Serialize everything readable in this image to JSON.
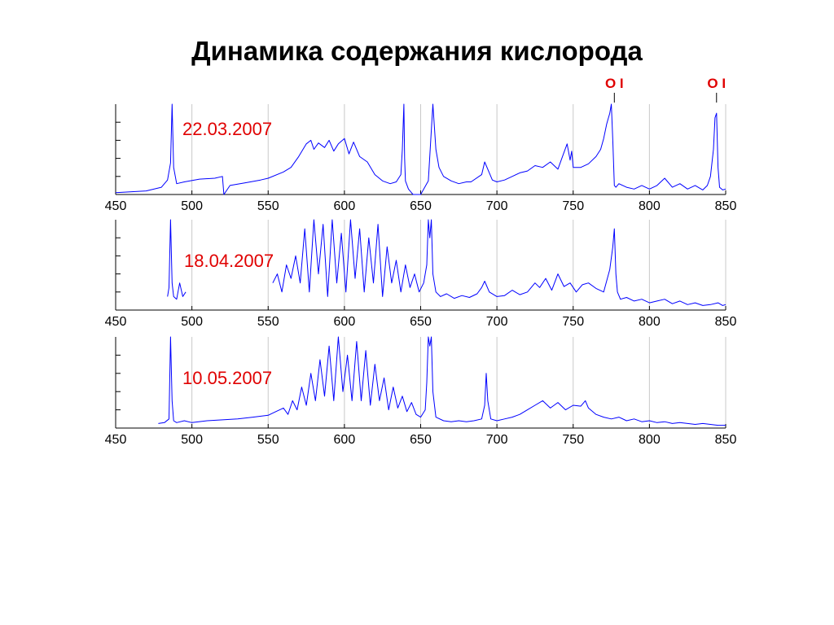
{
  "slide": {
    "title": "Динамика содержания кислорода"
  },
  "colors": {
    "series": "#0000ff",
    "date_label": "#e00000",
    "line_label": "#e00000",
    "grid": "#c8c8c8",
    "axis": "#000000"
  },
  "chart_data": [
    {
      "type": "line",
      "date_label": "22.03.2007",
      "xlim": [
        450,
        850
      ],
      "xticks": [
        450,
        500,
        550,
        600,
        650,
        700,
        750,
        800,
        850
      ],
      "ylim": [
        0,
        1
      ],
      "grid": "vertical",
      "annotations": [
        {
          "label": "O I",
          "x": 777
        },
        {
          "label": "O I",
          "x": 844
        }
      ],
      "series": [
        {
          "x": [
            450,
            470,
            480,
            484,
            486,
            487,
            488,
            490,
            495,
            505,
            515,
            520,
            521,
            525,
            535,
            545,
            550,
            560,
            565,
            570,
            575,
            578,
            580,
            583,
            587,
            590,
            593,
            596,
            600,
            603,
            606,
            610,
            615,
            620,
            625,
            630,
            634,
            637,
            638,
            639,
            639.5,
            640,
            642,
            644,
            645,
            650,
            655,
            658,
            660,
            662,
            665,
            670,
            675,
            680,
            683,
            690,
            692,
            695,
            697,
            700,
            705,
            710,
            715,
            720,
            725,
            730,
            735,
            740,
            743,
            746,
            748,
            749,
            750,
            755,
            760,
            765,
            768,
            770,
            772,
            774,
            775,
            776,
            777,
            778,
            780,
            785,
            790,
            795,
            800,
            805,
            810,
            815,
            820,
            825,
            830,
            835,
            838,
            840,
            842,
            843,
            844,
            845,
            846,
            848,
            850
          ],
          "y": [
            0.02,
            0.04,
            0.08,
            0.16,
            0.35,
            1.0,
            0.3,
            0.12,
            0.14,
            0.17,
            0.18,
            0.2,
            0.0,
            0.1,
            0.13,
            0.16,
            0.18,
            0.25,
            0.3,
            0.42,
            0.56,
            0.6,
            0.5,
            0.57,
            0.52,
            0.6,
            0.48,
            0.56,
            0.62,
            0.45,
            0.58,
            0.42,
            0.36,
            0.22,
            0.15,
            0.12,
            0.14,
            0.22,
            0.5,
            1.0,
            0.4,
            0.15,
            0.06,
            0.02,
            0.0,
            0.0,
            0.15,
            1.0,
            0.5,
            0.3,
            0.2,
            0.15,
            0.12,
            0.14,
            0.14,
            0.22,
            0.36,
            0.24,
            0.16,
            0.14,
            0.16,
            0.2,
            0.24,
            0.26,
            0.32,
            0.3,
            0.36,
            0.28,
            0.42,
            0.56,
            0.38,
            0.48,
            0.3,
            0.3,
            0.34,
            0.42,
            0.5,
            0.62,
            0.78,
            0.9,
            1.0,
            0.6,
            0.1,
            0.08,
            0.12,
            0.08,
            0.06,
            0.1,
            0.06,
            0.1,
            0.18,
            0.08,
            0.12,
            0.06,
            0.1,
            0.05,
            0.1,
            0.2,
            0.5,
            0.85,
            0.9,
            0.3,
            0.08,
            0.05,
            0.06
          ]
        }
      ]
    },
    {
      "type": "line",
      "date_label": "18.04.2007",
      "xlim": [
        450,
        850
      ],
      "xticks": [
        450,
        500,
        550,
        600,
        650,
        700,
        750,
        800,
        850
      ],
      "ylim": [
        0,
        1
      ],
      "grid": "vertical",
      "annotations": [],
      "series": [
        {
          "x": [
            484,
            485,
            486,
            487,
            488,
            490,
            492,
            494,
            496
          ],
          "y": [
            0.15,
            0.25,
            1.0,
            0.3,
            0.15,
            0.12,
            0.3,
            0.15,
            0.2
          ]
        },
        {
          "x": [
            553,
            556,
            559,
            562,
            565,
            568,
            571,
            574,
            577,
            580,
            583,
            586,
            589,
            592,
            595,
            598,
            601,
            604,
            607,
            610,
            613,
            616,
            619,
            622,
            625,
            628,
            631,
            634,
            637,
            640,
            643,
            646,
            649,
            652,
            654,
            655,
            656,
            657,
            658,
            660,
            663,
            667,
            672,
            677,
            682,
            687,
            690,
            692,
            695,
            700,
            705,
            710,
            715,
            720,
            725,
            728,
            732,
            736,
            740,
            744,
            748,
            752,
            756,
            760,
            765,
            770,
            774,
            776,
            777,
            778,
            779,
            781,
            785,
            790,
            795,
            800,
            805,
            810,
            815,
            820,
            825,
            830,
            835,
            840,
            845,
            848,
            850
          ],
          "y": [
            0.3,
            0.4,
            0.2,
            0.5,
            0.35,
            0.6,
            0.3,
            0.9,
            0.2,
            1.0,
            0.4,
            0.95,
            0.15,
            1.0,
            0.3,
            0.85,
            0.2,
            1.0,
            0.35,
            0.9,
            0.2,
            0.8,
            0.3,
            0.95,
            0.15,
            0.7,
            0.3,
            0.55,
            0.2,
            0.5,
            0.25,
            0.4,
            0.2,
            0.3,
            0.5,
            1.0,
            0.8,
            1.0,
            0.4,
            0.2,
            0.15,
            0.18,
            0.13,
            0.16,
            0.14,
            0.18,
            0.25,
            0.32,
            0.2,
            0.15,
            0.16,
            0.22,
            0.17,
            0.2,
            0.3,
            0.25,
            0.35,
            0.22,
            0.4,
            0.26,
            0.3,
            0.2,
            0.28,
            0.3,
            0.24,
            0.2,
            0.45,
            0.7,
            0.9,
            0.4,
            0.2,
            0.12,
            0.14,
            0.1,
            0.12,
            0.08,
            0.1,
            0.12,
            0.07,
            0.1,
            0.06,
            0.08,
            0.05,
            0.06,
            0.08,
            0.05,
            0.06
          ]
        }
      ]
    },
    {
      "type": "line",
      "date_label": "10.05.2007",
      "xlim": [
        450,
        850
      ],
      "xticks": [
        450,
        500,
        550,
        600,
        650,
        700,
        750,
        800,
        850
      ],
      "ylim": [
        0,
        1
      ],
      "grid": "vertical",
      "annotations": [],
      "series": [
        {
          "x": [
            478,
            482,
            485,
            486,
            487,
            488,
            490,
            495,
            500,
            510,
            520,
            530,
            540,
            550,
            555,
            560,
            563,
            566,
            569,
            572,
            575,
            578,
            581,
            584,
            587,
            590,
            593,
            596,
            599,
            602,
            605,
            608,
            611,
            614,
            617,
            620,
            623,
            626,
            629,
            632,
            635,
            638,
            641,
            644,
            647,
            650,
            653,
            654,
            655,
            656,
            657,
            658,
            660,
            665,
            670,
            675,
            680,
            685,
            690,
            692,
            693,
            694,
            696,
            700,
            705,
            710,
            715,
            720,
            725,
            730,
            735,
            740,
            745,
            750,
            755,
            758,
            760,
            765,
            770,
            775,
            780,
            785,
            790,
            795,
            800,
            805,
            810,
            815,
            820,
            825,
            830,
            835,
            840,
            845,
            850
          ],
          "y": [
            0.05,
            0.06,
            0.1,
            1.0,
            0.3,
            0.08,
            0.06,
            0.08,
            0.06,
            0.08,
            0.09,
            0.1,
            0.12,
            0.14,
            0.18,
            0.22,
            0.15,
            0.3,
            0.2,
            0.45,
            0.25,
            0.6,
            0.3,
            0.75,
            0.35,
            0.9,
            0.3,
            1.0,
            0.4,
            0.8,
            0.3,
            0.95,
            0.3,
            0.85,
            0.25,
            0.7,
            0.3,
            0.55,
            0.2,
            0.45,
            0.22,
            0.35,
            0.18,
            0.28,
            0.15,
            0.12,
            0.2,
            0.5,
            1.0,
            0.9,
            1.0,
            0.4,
            0.12,
            0.08,
            0.07,
            0.08,
            0.07,
            0.08,
            0.1,
            0.25,
            0.6,
            0.3,
            0.1,
            0.08,
            0.1,
            0.12,
            0.15,
            0.2,
            0.25,
            0.3,
            0.22,
            0.28,
            0.2,
            0.25,
            0.24,
            0.3,
            0.22,
            0.15,
            0.12,
            0.1,
            0.12,
            0.08,
            0.1,
            0.07,
            0.08,
            0.06,
            0.07,
            0.05,
            0.06,
            0.05,
            0.04,
            0.05,
            0.04,
            0.03,
            0.03
          ]
        }
      ]
    }
  ]
}
